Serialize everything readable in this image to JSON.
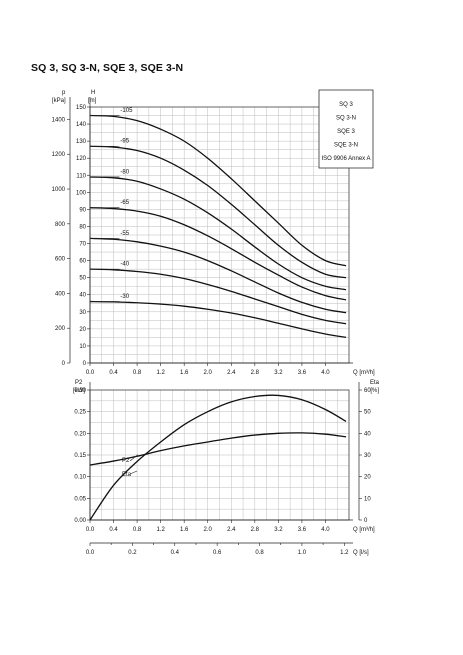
{
  "page": {
    "title": "SQ 3, SQ 3-N, SQE 3, SQE 3-N"
  },
  "chart_data": [
    {
      "type": "line",
      "title": "",
      "xlabel": "Q [m³/h]",
      "ylabel_left_1": "p",
      "ylabel_left_1_unit": "[kPa]",
      "ylabel_left_2": "H",
      "ylabel_left_2_unit": "[m]",
      "xlim": [
        0,
        4.4
      ],
      "ylim_m": [
        0,
        150
      ],
      "x_ticks": [
        "0.0",
        "0.4",
        "0.8",
        "1.2",
        "1.6",
        "2.0",
        "2.4",
        "2.8",
        "3.2",
        "3.6",
        "4.0"
      ],
      "y_ticks_m": [
        "0",
        "10",
        "20",
        "30",
        "40",
        "50",
        "60",
        "70",
        "80",
        "90",
        "100",
        "110",
        "120",
        "130",
        "140",
        "150"
      ],
      "y_ticks_kpa": [
        "0",
        "200",
        "400",
        "600",
        "800",
        "1000",
        "1200",
        "1400"
      ],
      "legend_box": [
        "SQ 3",
        "SQ 3-N",
        "SQE 3",
        "SQE 3-N",
        "ISO 9906 Annex A"
      ],
      "grid": true,
      "series": [
        {
          "name": "-105",
          "x": [
            0,
            0.4,
            0.8,
            1.2,
            1.6,
            2.0,
            2.4,
            2.8,
            3.2,
            3.6,
            4.0,
            4.35
          ],
          "y": [
            145,
            144.5,
            142,
            137,
            130,
            120,
            108,
            95,
            82,
            69,
            60,
            57
          ]
        },
        {
          "name": "-95",
          "x": [
            0,
            0.4,
            0.8,
            1.2,
            1.6,
            2.0,
            2.4,
            2.8,
            3.2,
            3.6,
            4.0,
            4.35
          ],
          "y": [
            127,
            126.5,
            124.5,
            120,
            113,
            104,
            93,
            81,
            69,
            59,
            52,
            50
          ]
        },
        {
          "name": "-80",
          "x": [
            0,
            0.4,
            0.8,
            1.2,
            1.6,
            2.0,
            2.4,
            2.8,
            3.2,
            3.6,
            4.0,
            4.35
          ],
          "y": [
            109,
            108.5,
            106.5,
            102,
            96,
            88,
            78.5,
            68,
            58,
            50,
            45,
            43
          ]
        },
        {
          "name": "-65",
          "x": [
            0,
            0.4,
            0.8,
            1.2,
            1.6,
            2.0,
            2.4,
            2.8,
            3.2,
            3.6,
            4.0,
            4.35
          ],
          "y": [
            91,
            90.5,
            89,
            86,
            81,
            74.5,
            67,
            59,
            51.5,
            44.5,
            39.5,
            37
          ]
        },
        {
          "name": "-55",
          "x": [
            0,
            0.4,
            0.8,
            1.2,
            1.6,
            2.0,
            2.4,
            2.8,
            3.2,
            3.6,
            4.0,
            4.35
          ],
          "y": [
            73,
            72.5,
            71,
            68.5,
            65,
            60,
            54,
            47.5,
            41,
            35.5,
            31.5,
            29.5
          ]
        },
        {
          "name": "-40",
          "x": [
            0,
            0.4,
            0.8,
            1.2,
            1.6,
            2.0,
            2.4,
            2.8,
            3.2,
            3.6,
            4.0,
            4.35
          ],
          "y": [
            55,
            54.6,
            53.6,
            52,
            49.5,
            46,
            42,
            37.5,
            33,
            28.5,
            25,
            23
          ]
        },
        {
          "name": "-30",
          "x": [
            0,
            0.4,
            0.8,
            1.2,
            1.6,
            2.0,
            2.4,
            2.8,
            3.2,
            3.6,
            4.0,
            4.35
          ],
          "y": [
            36,
            35.8,
            35.3,
            34.5,
            33.3,
            31.5,
            29.3,
            26.5,
            23.3,
            20,
            17,
            15
          ]
        }
      ]
    },
    {
      "type": "line",
      "title": "",
      "xlabel": "Q [m³/h]",
      "xlabel_2": "Q [l/s]",
      "ylabel_left": "P2",
      "ylabel_left_unit": "[kW]",
      "ylabel_right": "Eta",
      "ylabel_right_unit": "[%]",
      "xlim": [
        0,
        4.4
      ],
      "ylim_left": [
        0,
        0.3
      ],
      "ylim_right": [
        0,
        60
      ],
      "x_ticks": [
        "0.0",
        "0.4",
        "0.8",
        "1.2",
        "1.6",
        "2.0",
        "2.4",
        "2.8",
        "3.2",
        "3.6",
        "4.0"
      ],
      "x2_ticks": [
        "0.0",
        "0.2",
        "0.4",
        "0.6",
        "0.8",
        "1.0",
        "1.2"
      ],
      "y_ticks_left": [
        "0.00",
        "0.05",
        "0.10",
        "0.15",
        "0.20",
        "0.25",
        "0.30"
      ],
      "y_ticks_right": [
        "0",
        "10",
        "20",
        "30",
        "40",
        "50",
        "60"
      ],
      "grid": true,
      "series": [
        {
          "name": "P2",
          "axis": "left",
          "x": [
            0,
            0.4,
            0.8,
            1.2,
            1.6,
            2.0,
            2.4,
            2.8,
            3.2,
            3.6,
            4.0,
            4.35
          ],
          "y": [
            0.127,
            0.136,
            0.147,
            0.16,
            0.171,
            0.18,
            0.189,
            0.196,
            0.2,
            0.201,
            0.198,
            0.192
          ]
        },
        {
          "name": "Eta",
          "axis": "right",
          "x": [
            0,
            0.4,
            0.8,
            1.2,
            1.6,
            2.0,
            2.4,
            2.8,
            3.2,
            3.6,
            4.0,
            4.35
          ],
          "y": [
            0,
            16,
            27,
            36,
            44,
            50,
            54.5,
            57,
            57.5,
            55.5,
            51,
            45.5
          ]
        }
      ]
    }
  ]
}
